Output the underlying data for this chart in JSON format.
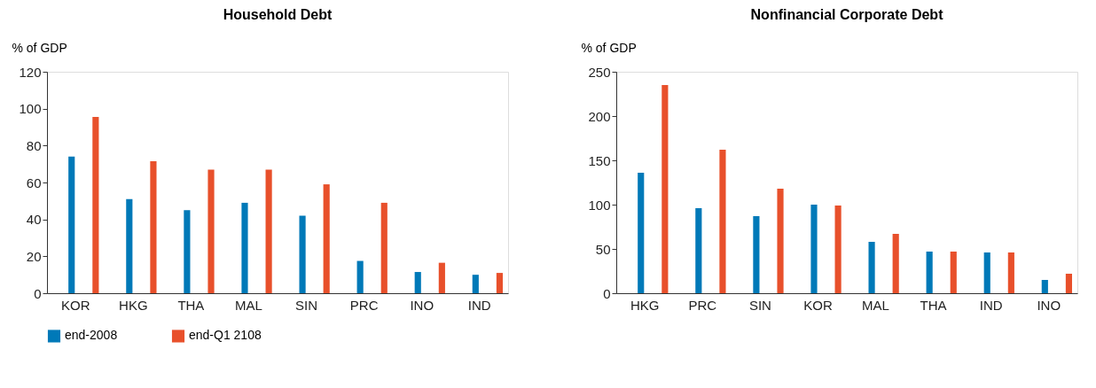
{
  "chart_data": [
    {
      "type": "bar",
      "title": "Household Debt",
      "ylabel": "% of GDP",
      "categories": [
        "KOR",
        "HKG",
        "THA",
        "MAL",
        "SIN",
        "PRC",
        "INO",
        "IND"
      ],
      "ylim": [
        0,
        120
      ],
      "yticks": [
        0,
        20,
        40,
        60,
        80,
        100,
        120
      ],
      "grid": false,
      "legend": "bottom",
      "series": [
        {
          "name": "end-2008",
          "color": "#0079b8",
          "values": [
            74,
            51,
            45,
            49,
            42,
            17.5,
            11.5,
            10
          ]
        },
        {
          "name": "end-Q1 2108",
          "color": "#e8502b",
          "values": [
            95.5,
            71.5,
            67,
            67,
            59,
            49,
            16.5,
            11
          ]
        }
      ]
    },
    {
      "type": "bar",
      "title": "Nonfinancial Corporate Debt",
      "ylabel": "% of GDP",
      "categories": [
        "HKG",
        "PRC",
        "SIN",
        "KOR",
        "MAL",
        "THA",
        "IND",
        "INO"
      ],
      "ylim": [
        0,
        250
      ],
      "yticks": [
        0,
        50,
        100,
        150,
        200,
        250
      ],
      "grid": false,
      "legend": "bottom",
      "series": [
        {
          "name": "end-2008",
          "color": "#0079b8",
          "values": [
            136,
            96,
            87,
            100,
            58,
            47,
            46,
            15
          ]
        },
        {
          "name": "end-Q1 2108",
          "color": "#e8502b",
          "values": [
            235,
            162,
            118,
            99,
            67,
            47,
            46,
            22
          ]
        }
      ]
    }
  ]
}
